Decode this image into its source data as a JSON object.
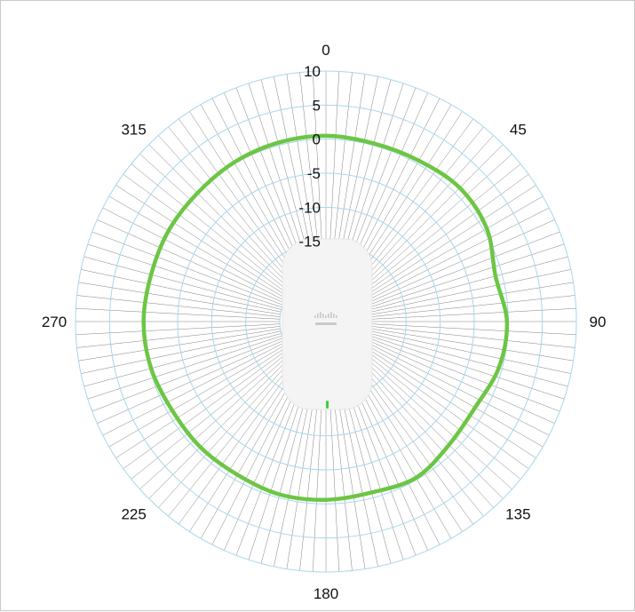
{
  "chart_data": {
    "type": "polar-line",
    "title": "",
    "angle_unit": "degrees",
    "angle_labels": [
      "0",
      "45",
      "90",
      "135",
      "180",
      "225",
      "270",
      "315"
    ],
    "angle_label_values": [
      0,
      45,
      90,
      135,
      180,
      225,
      270,
      315
    ],
    "radial_range": [
      -20,
      10
    ],
    "radial_ticks": [
      10,
      5,
      0,
      -5,
      -10,
      -15
    ],
    "radial_tick_labels": [
      "10",
      "5",
      "0",
      "-5",
      "-10",
      "-15"
    ],
    "grid": true,
    "spoke_step_deg": 3,
    "series": [
      {
        "color": "#6cc644",
        "angles": [
          0,
          15,
          30,
          45,
          60,
          75,
          90,
          105,
          120,
          135,
          150,
          165,
          180,
          195,
          210,
          225,
          240,
          255,
          270,
          285,
          300,
          315,
          330,
          345
        ],
        "values": [
          0.5,
          0.3,
          0.5,
          1.0,
          0.5,
          -1.0,
          -0.2,
          -0.5,
          -1.5,
          -1.2,
          -0.3,
          -0.8,
          -0.6,
          -0.5,
          -0.8,
          -0.7,
          -0.7,
          -0.2,
          0.0,
          -0.2,
          -0.1,
          -0.1,
          0.2,
          0.4
        ]
      }
    ]
  },
  "colors": {
    "grid_rings": "#a9d6ec",
    "grid_spokes": "#555555",
    "series_line": "#6cc644",
    "device_body": "#f4f4f4",
    "device_led": "#3cd13c",
    "device_logo": "#c9c9c9"
  },
  "device": {
    "icon": "access-point-device",
    "logo_icon": "cisco-logo-icon",
    "led_icon": "status-led-icon"
  }
}
